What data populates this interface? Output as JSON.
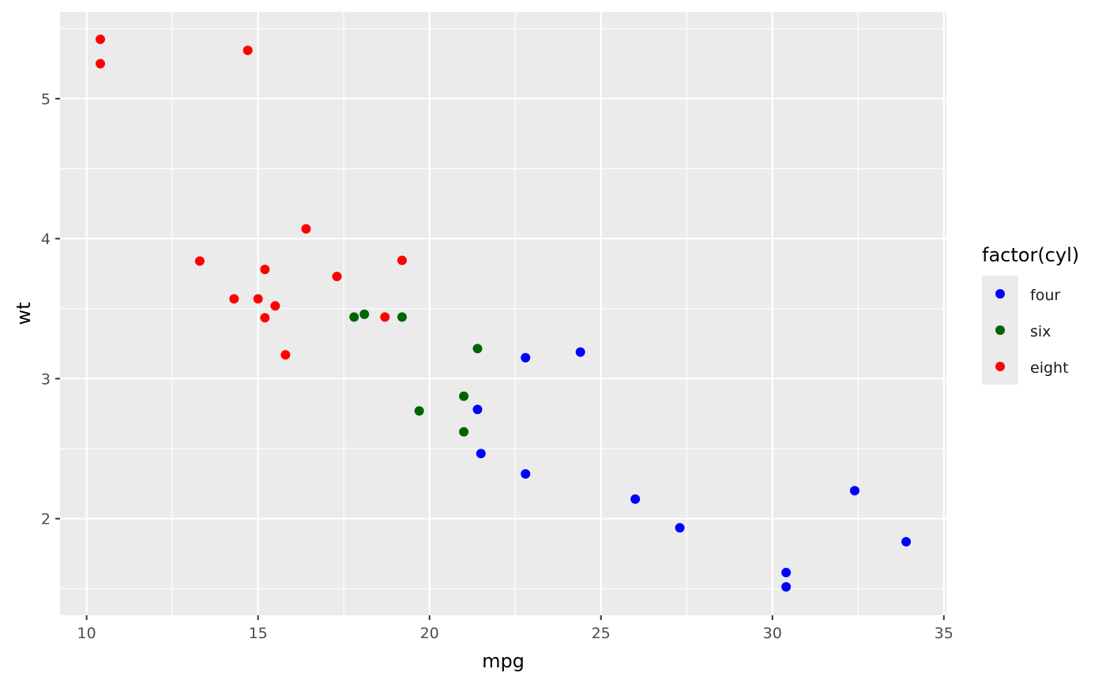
{
  "chart_data": {
    "type": "scatter",
    "xlabel": "mpg",
    "ylabel": "wt",
    "xlim": [
      9.225,
      35.075
    ],
    "ylim": [
      1.31,
      5.62
    ],
    "x_ticks": [
      10,
      15,
      20,
      25,
      30,
      35
    ],
    "y_ticks": [
      2,
      3,
      4,
      5
    ],
    "x_tick_labels": [
      "10",
      "15",
      "20",
      "25",
      "30",
      "35"
    ],
    "y_tick_labels": [
      "2",
      "3",
      "4",
      "5"
    ],
    "grid": true,
    "legend": {
      "title": "factor(cyl)",
      "position": "right",
      "entries": [
        "four",
        "six",
        "eight"
      ]
    },
    "colors": {
      "four": "#0000ff",
      "six": "#006400",
      "eight": "#ff0000"
    },
    "background": "#ebebeb",
    "series": [
      {
        "name": "four",
        "points": [
          [
            22.8,
            2.32
          ],
          [
            24.4,
            3.19
          ],
          [
            22.8,
            3.15
          ],
          [
            32.4,
            2.2
          ],
          [
            30.4,
            1.615
          ],
          [
            33.9,
            1.835
          ],
          [
            21.5,
            2.465
          ],
          [
            27.3,
            1.935
          ],
          [
            26.0,
            2.14
          ],
          [
            30.4,
            1.513
          ],
          [
            21.4,
            2.78
          ]
        ]
      },
      {
        "name": "six",
        "points": [
          [
            21.0,
            2.62
          ],
          [
            21.0,
            2.875
          ],
          [
            21.4,
            3.215
          ],
          [
            18.1,
            3.46
          ],
          [
            19.2,
            3.44
          ],
          [
            17.8,
            3.44
          ],
          [
            19.7,
            2.77
          ]
        ]
      },
      {
        "name": "eight",
        "points": [
          [
            18.7,
            3.44
          ],
          [
            14.3,
            3.57
          ],
          [
            16.4,
            4.07
          ],
          [
            17.3,
            3.73
          ],
          [
            15.2,
            3.78
          ],
          [
            10.4,
            5.25
          ],
          [
            10.4,
            5.424
          ],
          [
            14.7,
            5.345
          ],
          [
            15.5,
            3.52
          ],
          [
            15.2,
            3.435
          ],
          [
            13.3,
            3.84
          ],
          [
            19.2,
            3.845
          ],
          [
            15.8,
            3.17
          ],
          [
            15.0,
            3.57
          ]
        ]
      }
    ]
  }
}
